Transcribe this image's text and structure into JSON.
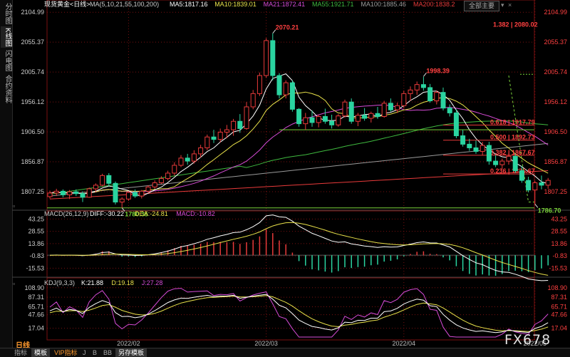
{
  "sidebar": {
    "tabs": [
      "分时图",
      "K线图",
      "闪电图",
      "合约资料"
    ]
  },
  "header": {
    "symbol": "现货黄金<日线>",
    "ma_prefix": "MA(5,10,21,55,100,200)",
    "ma_values": [
      {
        "label": "MA5:1817.16",
        "color": "#ffffff"
      },
      {
        "label": "MA10:1839.01",
        "color": "#e8e14a"
      },
      {
        "label": "MA21:1872.41",
        "color": "#d64bd6"
      },
      {
        "label": "MA55:1921.71",
        "color": "#3fb93f"
      },
      {
        "label": "MA100:1885.46",
        "color": "#9a9a9a"
      },
      {
        "label": "MA200:1838.2",
        "color": "#e83a3a"
      }
    ],
    "button": "全部主要",
    "macd_label": "MACD(26,12,9)",
    "macd_values": [
      {
        "label": "DIFF:-30.22",
        "color": "#ffffff"
      },
      {
        "label": "DEA:-24.81",
        "color": "#e8e14a"
      },
      {
        "label": "MACD:-10.82",
        "color": "#d64bd6"
      }
    ],
    "kdj_label": "KDJ(9,3,3)",
    "kdj_values": [
      {
        "label": "K:21.88",
        "color": "#ffffff"
      },
      {
        "label": "D:19.18",
        "color": "#e8e14a"
      },
      {
        "label": "J:27.28",
        "color": "#d64bd6"
      }
    ]
  },
  "period_label": "日线",
  "bottom_tabs": [
    "指标",
    "模板",
    "VIP指标",
    "J",
    "B",
    "BB",
    "另存模板"
  ],
  "logo": "FX678",
  "colors": {
    "up": "#e83a3a",
    "down": "#2ad4a0",
    "grid": "#7a1010",
    "ma5": "#ffffff",
    "ma10": "#e8e14a",
    "ma21": "#d64bd6",
    "ma55": "#3fb93f",
    "ma100": "#9a9a9a",
    "ma200": "#e83a3a"
  },
  "chart_data": [
    {
      "type": "candlestick",
      "title": "现货黄金<日线>",
      "x_labels": [
        "2022/02",
        "2022/03",
        "2022/04",
        "2022/05"
      ],
      "x_label_index": [
        12,
        33,
        54,
        74
      ],
      "ylim": [
        1780,
        2110
      ],
      "yticks": [
        2104.99,
        2055.37,
        2005.74,
        1956.12,
        1906.5,
        1856.87,
        1807.25
      ],
      "candles": [
        [
          1799,
          1809,
          1796,
          1805
        ],
        [
          1805,
          1812,
          1800,
          1808
        ],
        [
          1808,
          1811,
          1798,
          1802
        ],
        [
          1802,
          1810,
          1795,
          1807
        ],
        [
          1807,
          1811,
          1800,
          1804
        ],
        [
          1804,
          1808,
          1790,
          1798
        ],
        [
          1798,
          1814,
          1797,
          1812
        ],
        [
          1812,
          1821,
          1806,
          1818
        ],
        [
          1818,
          1837,
          1816,
          1834
        ],
        [
          1834,
          1838,
          1816,
          1821
        ],
        [
          1821,
          1824,
          1786,
          1790
        ],
        [
          1790,
          1798,
          1780,
          1795
        ],
        [
          1795,
          1808,
          1792,
          1806
        ],
        [
          1806,
          1811,
          1797,
          1800
        ],
        [
          1800,
          1810,
          1796,
          1808
        ],
        [
          1808,
          1818,
          1805,
          1815
        ],
        [
          1815,
          1826,
          1812,
          1822
        ],
        [
          1822,
          1833,
          1820,
          1829
        ],
        [
          1829,
          1842,
          1826,
          1838
        ],
        [
          1838,
          1856,
          1834,
          1851
        ],
        [
          1851,
          1868,
          1848,
          1863
        ],
        [
          1863,
          1870,
          1852,
          1858
        ],
        [
          1858,
          1876,
          1854,
          1870
        ],
        [
          1870,
          1885,
          1864,
          1880
        ],
        [
          1880,
          1902,
          1876,
          1898
        ],
        [
          1898,
          1910,
          1888,
          1894
        ],
        [
          1894,
          1912,
          1889,
          1906
        ],
        [
          1906,
          1918,
          1896,
          1910
        ],
        [
          1910,
          1928,
          1900,
          1924
        ],
        [
          1924,
          1936,
          1905,
          1912
        ],
        [
          1912,
          1956,
          1910,
          1948
        ],
        [
          1948,
          1976,
          1944,
          1970
        ],
        [
          1970,
          2005,
          1966,
          2000
        ],
        [
          2000,
          2062,
          1996,
          2058
        ],
        [
          2058,
          2070,
          1992,
          2000
        ],
        [
          2000,
          2004,
          1962,
          1968
        ],
        [
          1968,
          1992,
          1962,
          1988
        ],
        [
          1988,
          1992,
          1940,
          1944
        ],
        [
          1944,
          1946,
          1915,
          1920
        ],
        [
          1920,
          1938,
          1910,
          1930
        ],
        [
          1930,
          1942,
          1915,
          1922
        ],
        [
          1922,
          1935,
          1914,
          1932
        ],
        [
          1932,
          1945,
          1920,
          1924
        ],
        [
          1924,
          1935,
          1912,
          1918
        ],
        [
          1918,
          1936,
          1915,
          1933
        ],
        [
          1933,
          1960,
          1930,
          1956
        ],
        [
          1956,
          1962,
          1920,
          1924
        ],
        [
          1924,
          1938,
          1916,
          1934
        ],
        [
          1934,
          1946,
          1925,
          1929
        ],
        [
          1929,
          1940,
          1922,
          1937
        ],
        [
          1937,
          1948,
          1928,
          1932
        ],
        [
          1932,
          1958,
          1930,
          1954
        ],
        [
          1954,
          1962,
          1940,
          1943
        ],
        [
          1943,
          1955,
          1938,
          1950
        ],
        [
          1950,
          1975,
          1946,
          1970
        ],
        [
          1970,
          1982,
          1958,
          1976
        ],
        [
          1976,
          1990,
          1968,
          1985
        ],
        [
          1985,
          1998,
          1975,
          1980
        ],
        [
          1980,
          1986,
          1955,
          1958
        ],
        [
          1958,
          1975,
          1952,
          1972
        ],
        [
          1972,
          1980,
          1942,
          1946
        ],
        [
          1946,
          1952,
          1932,
          1938
        ],
        [
          1938,
          1944,
          1896,
          1900
        ],
        [
          1900,
          1910,
          1882,
          1886
        ],
        [
          1886,
          1895,
          1875,
          1880
        ],
        [
          1880,
          1892,
          1870,
          1874
        ],
        [
          1874,
          1890,
          1868,
          1884
        ],
        [
          1884,
          1890,
          1852,
          1858
        ],
        [
          1858,
          1868,
          1848,
          1852
        ],
        [
          1852,
          1862,
          1845,
          1858
        ],
        [
          1858,
          1872,
          1852,
          1866
        ],
        [
          1866,
          1870,
          1838,
          1842
        ],
        [
          1842,
          1850,
          1822,
          1826
        ],
        [
          1826,
          1832,
          1806,
          1810
        ],
        [
          1810,
          1825,
          1786,
          1822
        ],
        [
          1822,
          1834,
          1811,
          1818
        ],
        [
          1818,
          1830,
          1812,
          1826
        ]
      ],
      "annotations": [
        {
          "label": "2070.21",
          "value": 2070.21,
          "index": 34
        },
        {
          "label": "1998.39",
          "value": 1998.39,
          "index": 57
        },
        {
          "label": "1780.35",
          "value": 1780.35,
          "index": 11
        },
        {
          "label": "1786.70",
          "value": 1786.7,
          "index": 74
        }
      ],
      "fib_levels": [
        {
          "label": "1.382 | 2080.02",
          "value": 2080.02
        },
        {
          "label": "0.618 | 1917.79",
          "value": 1917.79
        },
        {
          "label": "0.500 | 1892.73",
          "value": 1892.73
        },
        {
          "label": "0.382 | 1867.67",
          "value": 1867.67
        },
        {
          "label": "0.236 | 1836.67",
          "value": 1836.67
        }
      ]
    },
    {
      "type": "macd",
      "title": "MACD(26,12,9)",
      "ylim": [
        -22,
        47
      ],
      "yticks": [
        43.25,
        28.55,
        13.86,
        -0.83,
        -15.53
      ]
    },
    {
      "type": "kdj",
      "title": "KDJ(9,3,3)",
      "ylim": [
        -3,
        115
      ],
      "yticks": [
        108.9,
        87.31,
        65.71,
        47.66,
        17.04
      ]
    }
  ]
}
